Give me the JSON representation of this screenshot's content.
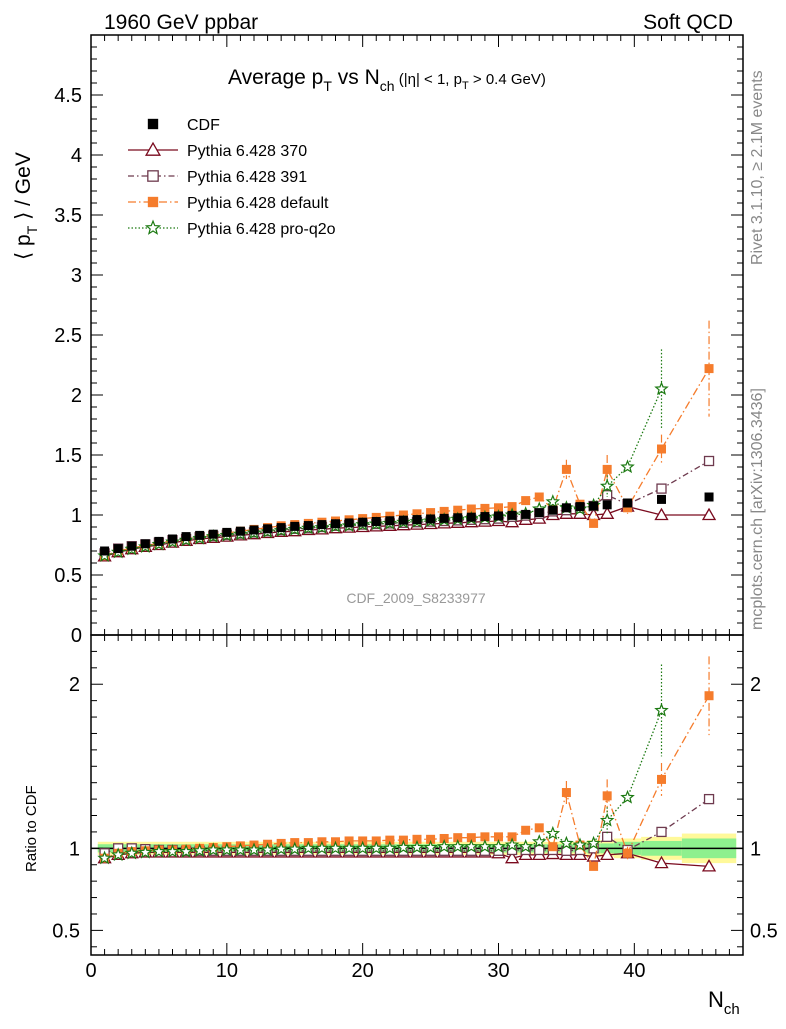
{
  "header": {
    "left": "1960 GeV ppbar",
    "right": "Soft QCD"
  },
  "side_labels": {
    "rivet": "Rivet 3.1.10, ≥ 2.1M events",
    "mcplots": "mcplots.cern.ch [arXiv:1306.3436]"
  },
  "colors": {
    "cdf": "#000000",
    "p370": "#7a0a1e",
    "p391": "#6e3a4e",
    "default": "#f57c2c",
    "proq2o": "#1c7a12",
    "band_outer": "#fff99a",
    "band_inner": "#8ef08e"
  },
  "chart_data": [
    {
      "type": "scatter",
      "title": "Average pT vs Nch (|η| < 1, pT > 0.4 GeV)",
      "title_parts": {
        "a": "Average p",
        "a_sub": "T",
        "b": " vs N",
        "b_sub": "ch",
        "c": " (|η| < 1, p",
        "c_sub": "T",
        "d": " > 0.4 GeV)"
      },
      "ylabel": "⟨ pT ⟩ / GeV",
      "ylabel_parts": {
        "a": "⟨ p",
        "sub": "T",
        "b": " ⟩ / GeV"
      },
      "xlabel": "Nch",
      "xlim": [
        0,
        48
      ],
      "ylim": [
        0,
        5
      ],
      "yticks": [
        "0",
        "0.5",
        "1",
        "1.5",
        "2",
        "2.5",
        "3",
        "3.5",
        "4",
        "4.5"
      ],
      "watermark": "CDF_2009_S8233977",
      "legend_position": "top-left",
      "series": [
        {
          "name": "CDF",
          "marker": "filled-square",
          "x": [
            1,
            2,
            3,
            4,
            5,
            6,
            7,
            8,
            9,
            10,
            11,
            12,
            13,
            14,
            15,
            16,
            17,
            18,
            19,
            20,
            21,
            22,
            23,
            24,
            25,
            26,
            27,
            28,
            29,
            30,
            31,
            32,
            33,
            34,
            35,
            36,
            37,
            38,
            39.5,
            42,
            45.5
          ],
          "y": [
            0.7,
            0.72,
            0.74,
            0.76,
            0.78,
            0.8,
            0.82,
            0.83,
            0.84,
            0.855,
            0.865,
            0.875,
            0.885,
            0.895,
            0.905,
            0.912,
            0.92,
            0.927,
            0.934,
            0.94,
            0.946,
            0.952,
            0.957,
            0.962,
            0.967,
            0.972,
            0.977,
            0.982,
            0.987,
            0.992,
            0.997,
            1.005,
            1.02,
            1.04,
            1.06,
            1.07,
            1.075,
            1.085,
            1.1,
            1.13,
            1.15
          ]
        },
        {
          "name": "Pythia 6.428 370",
          "marker": "open-triangle",
          "x": [
            1,
            2,
            3,
            4,
            5,
            6,
            7,
            8,
            9,
            10,
            11,
            12,
            13,
            14,
            15,
            16,
            17,
            18,
            19,
            20,
            21,
            22,
            23,
            24,
            25,
            26,
            27,
            28,
            29,
            30,
            31,
            32,
            33,
            34,
            35,
            36,
            37,
            38,
            39.5,
            42,
            45.5
          ],
          "y": [
            0.655,
            0.69,
            0.715,
            0.735,
            0.75,
            0.77,
            0.785,
            0.8,
            0.81,
            0.82,
            0.83,
            0.84,
            0.85,
            0.86,
            0.865,
            0.875,
            0.88,
            0.89,
            0.895,
            0.9,
            0.905,
            0.91,
            0.915,
            0.92,
            0.925,
            0.93,
            0.935,
            0.94,
            0.945,
            0.95,
            0.94,
            0.96,
            0.97,
            1.0,
            1.01,
            1.01,
            1.0,
            1.01,
            1.07,
            1.0,
            1.0
          ]
        },
        {
          "name": "Pythia 6.428 391",
          "marker": "open-square",
          "x": [
            1,
            2,
            3,
            4,
            5,
            6,
            7,
            8,
            9,
            10,
            11,
            12,
            13,
            14,
            15,
            16,
            17,
            18,
            19,
            20,
            21,
            22,
            23,
            24,
            25,
            26,
            27,
            28,
            29,
            30,
            31,
            32,
            33,
            34,
            35,
            36,
            37,
            38,
            39.5,
            42,
            45.5
          ],
          "y": [
            0.68,
            0.72,
            0.74,
            0.755,
            0.77,
            0.79,
            0.8,
            0.815,
            0.825,
            0.835,
            0.845,
            0.855,
            0.865,
            0.875,
            0.885,
            0.89,
            0.9,
            0.91,
            0.915,
            0.92,
            0.925,
            0.93,
            0.935,
            0.94,
            0.945,
            0.95,
            0.955,
            0.96,
            0.965,
            0.97,
            0.985,
            0.995,
            1.01,
            1.03,
            1.04,
            1.06,
            1.075,
            1.165,
            1.09,
            1.22,
            1.45
          ]
        },
        {
          "name": "Pythia 6.428 default",
          "marker": "filled-square",
          "x": [
            1,
            2,
            3,
            4,
            5,
            6,
            7,
            8,
            9,
            10,
            11,
            12,
            13,
            14,
            15,
            16,
            17,
            18,
            19,
            20,
            21,
            22,
            23,
            24,
            25,
            26,
            27,
            28,
            29,
            30,
            31,
            32,
            33,
            34,
            35,
            36,
            37,
            38,
            39.5,
            42,
            45.5
          ],
          "y": [
            0.66,
            0.7,
            0.725,
            0.745,
            0.765,
            0.785,
            0.8,
            0.82,
            0.835,
            0.85,
            0.865,
            0.88,
            0.895,
            0.91,
            0.92,
            0.93,
            0.94,
            0.95,
            0.96,
            0.97,
            0.98,
            0.99,
            1.0,
            1.01,
            1.02,
            1.03,
            1.04,
            1.05,
            1.055,
            1.06,
            1.07,
            1.12,
            1.15,
            1.05,
            1.38,
            1.09,
            0.93,
            1.38,
            1.06,
            1.55,
            2.22
          ],
          "err": [
            0,
            0,
            0,
            0,
            0,
            0,
            0,
            0,
            0,
            0,
            0,
            0,
            0,
            0,
            0,
            0,
            0,
            0,
            0,
            0,
            0,
            0,
            0,
            0,
            0,
            0,
            0,
            0,
            0,
            0,
            0,
            0,
            0,
            0,
            0.08,
            0,
            0.03,
            0.12,
            0.05,
            0.12,
            0.4
          ]
        },
        {
          "name": "Pythia 6.428 pro-q2o",
          "marker": "star",
          "x": [
            1,
            2,
            3,
            4,
            5,
            6,
            7,
            8,
            9,
            10,
            11,
            12,
            13,
            14,
            15,
            16,
            17,
            18,
            19,
            20,
            21,
            22,
            23,
            24,
            25,
            26,
            27,
            28,
            29,
            30,
            31,
            32,
            33,
            34,
            35,
            36,
            37,
            38,
            39.5,
            42,
            45.5
          ],
          "y": [
            0.66,
            0.69,
            0.715,
            0.735,
            0.755,
            0.775,
            0.79,
            0.805,
            0.82,
            0.83,
            0.84,
            0.85,
            0.86,
            0.87,
            0.88,
            0.89,
            0.895,
            0.905,
            0.91,
            0.92,
            0.925,
            0.93,
            0.94,
            0.945,
            0.95,
            0.96,
            0.965,
            0.97,
            0.98,
            0.985,
            1.0,
            1.01,
            1.05,
            1.11,
            1.06,
            1.05,
            1.08,
            1.24,
            1.4,
            2.05,
            null
          ],
          "err": [
            0,
            0,
            0,
            0,
            0,
            0,
            0,
            0,
            0,
            0,
            0,
            0,
            0,
            0,
            0,
            0,
            0,
            0,
            0,
            0,
            0,
            0,
            0,
            0,
            0,
            0,
            0,
            0,
            0,
            0,
            0,
            0,
            0,
            0,
            0,
            0,
            0,
            0.09,
            0,
            0.33,
            0
          ]
        }
      ]
    },
    {
      "type": "scatter",
      "ylabel": "Ratio to CDF",
      "xlabel": "Nch",
      "xlabel_parts": {
        "a": "N",
        "sub": "ch"
      },
      "xlim": [
        0,
        48
      ],
      "ylim": [
        0.35,
        2.3
      ],
      "yticks": [
        "0.5",
        "1",
        "2"
      ],
      "xticks": [
        "0",
        "10",
        "20",
        "30",
        "40"
      ],
      "band_x": [
        0.5,
        34.5,
        35.5,
        36.5,
        37.5,
        38.5,
        40.5,
        43.5,
        47.5
      ],
      "band_outer": [
        0.04,
        0.04,
        0.04,
        0.05,
        0.05,
        0.06,
        0.07,
        0.09,
        0.12
      ],
      "band_inner": [
        0.025,
        0.025,
        0.025,
        0.03,
        0.03,
        0.04,
        0.045,
        0.06,
        0.08
      ],
      "series": [
        {
          "name": "Pythia 6.428 370",
          "x": [
            1,
            2,
            3,
            4,
            5,
            6,
            7,
            8,
            9,
            10,
            11,
            12,
            13,
            14,
            15,
            16,
            17,
            18,
            19,
            20,
            21,
            22,
            23,
            24,
            25,
            26,
            27,
            28,
            29,
            30,
            31,
            32,
            33,
            34,
            35,
            36,
            37,
            38,
            39.5,
            42,
            45.5
          ],
          "y": [
            0.94,
            0.96,
            0.97,
            0.975,
            0.975,
            0.975,
            0.975,
            0.975,
            0.975,
            0.975,
            0.975,
            0.975,
            0.975,
            0.975,
            0.975,
            0.975,
            0.975,
            0.975,
            0.975,
            0.975,
            0.975,
            0.975,
            0.975,
            0.975,
            0.975,
            0.975,
            0.975,
            0.975,
            0.975,
            0.97,
            0.94,
            0.96,
            0.96,
            0.965,
            0.96,
            0.96,
            0.95,
            0.96,
            0.97,
            0.91,
            0.89
          ]
        },
        {
          "name": "Pythia 6.428 391",
          "x": [
            1,
            2,
            3,
            4,
            5,
            6,
            7,
            8,
            9,
            10,
            11,
            12,
            13,
            14,
            15,
            16,
            17,
            18,
            19,
            20,
            21,
            22,
            23,
            24,
            25,
            26,
            27,
            28,
            29,
            30,
            31,
            32,
            33,
            34,
            35,
            36,
            37,
            38,
            39.5,
            42,
            45.5
          ],
          "y": [
            0.97,
            1.0,
            1.0,
            0.995,
            0.99,
            0.99,
            0.985,
            0.985,
            0.985,
            0.985,
            0.985,
            0.985,
            0.985,
            0.985,
            0.985,
            0.985,
            0.985,
            0.985,
            0.985,
            0.985,
            0.985,
            0.985,
            0.985,
            0.985,
            0.985,
            0.985,
            0.985,
            0.985,
            0.985,
            0.985,
            0.99,
            0.99,
            0.99,
            0.99,
            0.985,
            0.99,
            1.0,
            1.07,
            0.99,
            1.1,
            1.3
          ]
        },
        {
          "name": "Pythia 6.428 default",
          "x": [
            1,
            2,
            3,
            4,
            5,
            6,
            7,
            8,
            9,
            10,
            11,
            12,
            13,
            14,
            15,
            16,
            17,
            18,
            19,
            20,
            21,
            22,
            23,
            24,
            25,
            26,
            27,
            28,
            29,
            30,
            31,
            32,
            33,
            34,
            35,
            36,
            37,
            38,
            39.5,
            42,
            45.5
          ],
          "y": [
            0.94,
            0.97,
            0.98,
            0.985,
            0.99,
            0.99,
            0.995,
            1.0,
            1.005,
            1.01,
            1.015,
            1.02,
            1.025,
            1.03,
            1.035,
            1.035,
            1.04,
            1.04,
            1.045,
            1.045,
            1.045,
            1.05,
            1.05,
            1.055,
            1.055,
            1.06,
            1.065,
            1.065,
            1.07,
            1.07,
            1.07,
            1.11,
            1.125,
            1.01,
            1.34,
            1.02,
            0.89,
            1.32,
            0.97,
            1.42,
            1.93
          ],
          "err": [
            0,
            0,
            0,
            0,
            0,
            0,
            0,
            0,
            0,
            0,
            0,
            0,
            0,
            0,
            0,
            0,
            0,
            0,
            0,
            0,
            0,
            0,
            0,
            0,
            0,
            0,
            0,
            0,
            0,
            0,
            0,
            0,
            0,
            0,
            0.07,
            0,
            0.03,
            0.1,
            0.04,
            0.1,
            0.24
          ]
        },
        {
          "name": "Pythia 6.428 pro-q2o",
          "x": [
            1,
            2,
            3,
            4,
            5,
            6,
            7,
            8,
            9,
            10,
            11,
            12,
            13,
            14,
            15,
            16,
            17,
            18,
            19,
            20,
            21,
            22,
            23,
            24,
            25,
            26,
            27,
            28,
            29,
            30,
            31,
            32,
            33,
            34,
            35,
            36,
            37,
            38,
            39.5,
            42,
            45.5
          ],
          "y": [
            0.94,
            0.96,
            0.97,
            0.975,
            0.98,
            0.98,
            0.98,
            0.985,
            0.99,
            0.99,
            0.99,
            0.99,
            0.99,
            0.995,
            0.995,
            1.0,
            1.0,
            1.0,
            1.0,
            1.0,
            1.0,
            1.0,
            1.005,
            1.005,
            1.005,
            1.01,
            1.01,
            1.01,
            1.01,
            1.01,
            1.02,
            1.01,
            1.04,
            1.09,
            1.03,
            1.02,
            1.03,
            1.17,
            1.31,
            1.84,
            null
          ],
          "err": [
            0,
            0,
            0,
            0,
            0,
            0,
            0,
            0,
            0,
            0,
            0,
            0,
            0,
            0,
            0,
            0,
            0,
            0,
            0,
            0,
            0,
            0,
            0,
            0,
            0,
            0,
            0,
            0,
            0,
            0,
            0,
            0,
            0,
            0,
            0,
            0,
            0,
            0.08,
            0,
            0.28,
            0
          ]
        }
      ]
    }
  ]
}
